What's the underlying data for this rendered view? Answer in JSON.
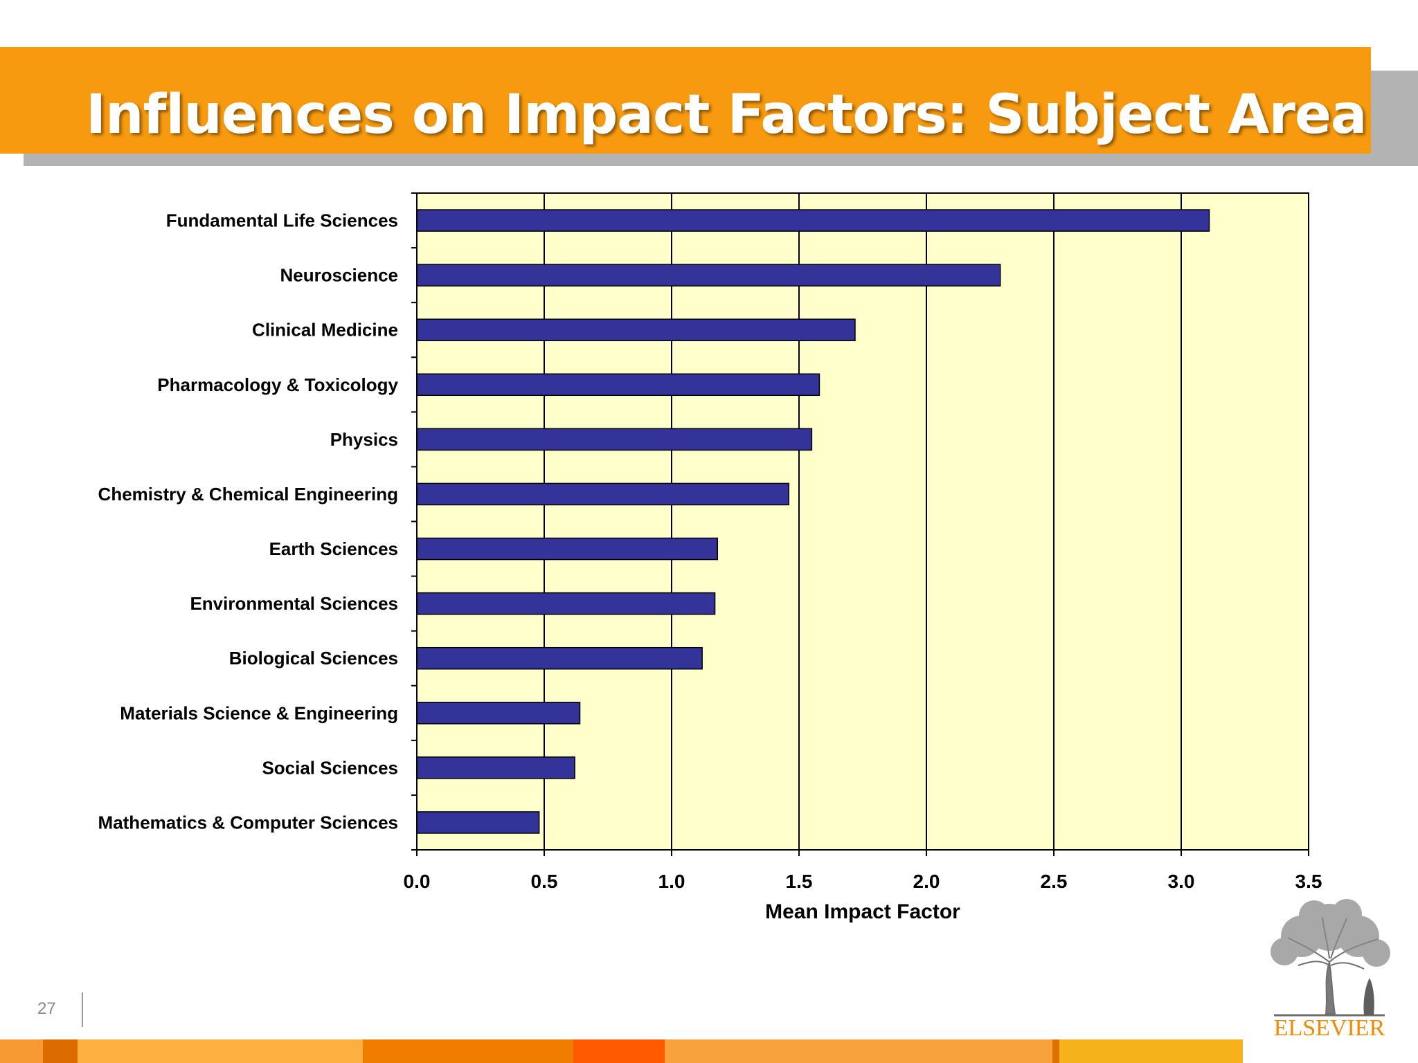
{
  "slide": {
    "title": "Influences on Impact Factors: Subject Area",
    "page_number": "27",
    "logo_text": "ELSEVIER"
  },
  "colors": {
    "title_bar": "#f79a0f",
    "plot_background": "#ffffcc",
    "bar_fill": "#333399",
    "logo": "#f08a00"
  },
  "chart_data": {
    "type": "bar",
    "orientation": "horizontal",
    "categories": [
      "Fundamental Life Sciences",
      "Neuroscience",
      "Clinical Medicine",
      "Pharmacology & Toxicology",
      "Physics",
      "Chemistry & Chemical Engineering",
      "Earth Sciences",
      "Environmental Sciences",
      "Biological Sciences",
      "Materials Science & Engineering",
      "Social Sciences",
      "Mathematics & Computer Sciences"
    ],
    "values": [
      3.11,
      2.29,
      1.72,
      1.58,
      1.55,
      1.46,
      1.18,
      1.17,
      1.12,
      0.64,
      0.62,
      0.48
    ],
    "xlabel": "Mean Impact Factor",
    "xlim": [
      0,
      3.5
    ],
    "xticks": [
      "0.0",
      "0.5",
      "1.0",
      "1.5",
      "2.0",
      "2.5",
      "3.0",
      "3.5"
    ],
    "grid": "vertical",
    "legend": "none"
  }
}
